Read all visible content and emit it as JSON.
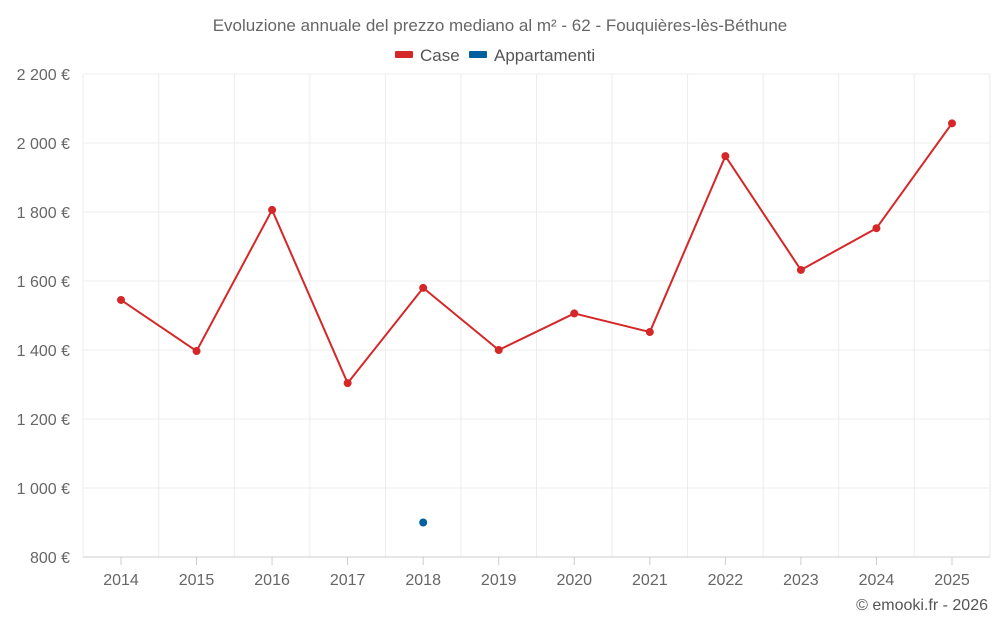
{
  "chart_data": {
    "type": "line",
    "title": "Evoluzione annuale del prezzo mediano al m² - 62 - Fouquières-lès-Béthune",
    "categories": [
      "2014",
      "2015",
      "2016",
      "2017",
      "2018",
      "2019",
      "2020",
      "2021",
      "2022",
      "2023",
      "2024",
      "2025"
    ],
    "series": [
      {
        "name": "Case",
        "color": "#d62728",
        "values": [
          1545,
          1397,
          1806,
          1304,
          1580,
          1400,
          1506,
          1452,
          1962,
          1632,
          1753,
          2057
        ]
      },
      {
        "name": "Appartamenti",
        "color": "#0060a0",
        "values": [
          null,
          null,
          null,
          null,
          900,
          null,
          null,
          null,
          null,
          null,
          null,
          null
        ]
      }
    ],
    "y_ticks": [
      "800 €",
      "1 000 €",
      "1 200 €",
      "1 400 €",
      "1 600 €",
      "1 800 €",
      "2 000 €",
      "2 200 €"
    ],
    "ylim": [
      800,
      2200
    ],
    "grid": true,
    "legend_position": "top-center",
    "xlabel": "",
    "ylabel": ""
  },
  "credit": "© emooki.fr - 2026"
}
